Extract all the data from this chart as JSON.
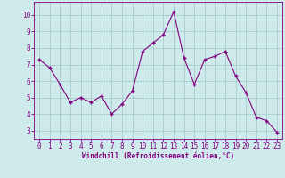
{
  "x": [
    0,
    1,
    2,
    3,
    4,
    5,
    6,
    7,
    8,
    9,
    10,
    11,
    12,
    13,
    14,
    15,
    16,
    17,
    18,
    19,
    20,
    21,
    22,
    23
  ],
  "y": [
    7.3,
    6.8,
    5.8,
    4.7,
    5.0,
    4.7,
    5.1,
    4.0,
    4.6,
    5.4,
    7.8,
    8.3,
    8.8,
    10.2,
    7.4,
    5.8,
    7.3,
    7.5,
    7.8,
    6.3,
    5.3,
    3.8,
    3.6,
    2.9
  ],
  "line_color": "#800080",
  "marker": "+",
  "marker_size": 3,
  "bg_color": "#ceeaea",
  "grid_color": "#aacccc",
  "axis_color": "#800080",
  "tick_color": "#800080",
  "xlabel": "Windchill (Refroidissement éolien,°C)",
  "xlabel_color": "#800080",
  "ylim": [
    2.5,
    10.8
  ],
  "xlim": [
    -0.5,
    23.5
  ],
  "yticks": [
    3,
    4,
    5,
    6,
    7,
    8,
    9,
    10
  ],
  "xticks": [
    0,
    1,
    2,
    3,
    4,
    5,
    6,
    7,
    8,
    9,
    10,
    11,
    12,
    13,
    14,
    15,
    16,
    17,
    18,
    19,
    20,
    21,
    22,
    23
  ],
  "tick_fontsize": 5.5,
  "xlabel_fontsize": 5.5
}
